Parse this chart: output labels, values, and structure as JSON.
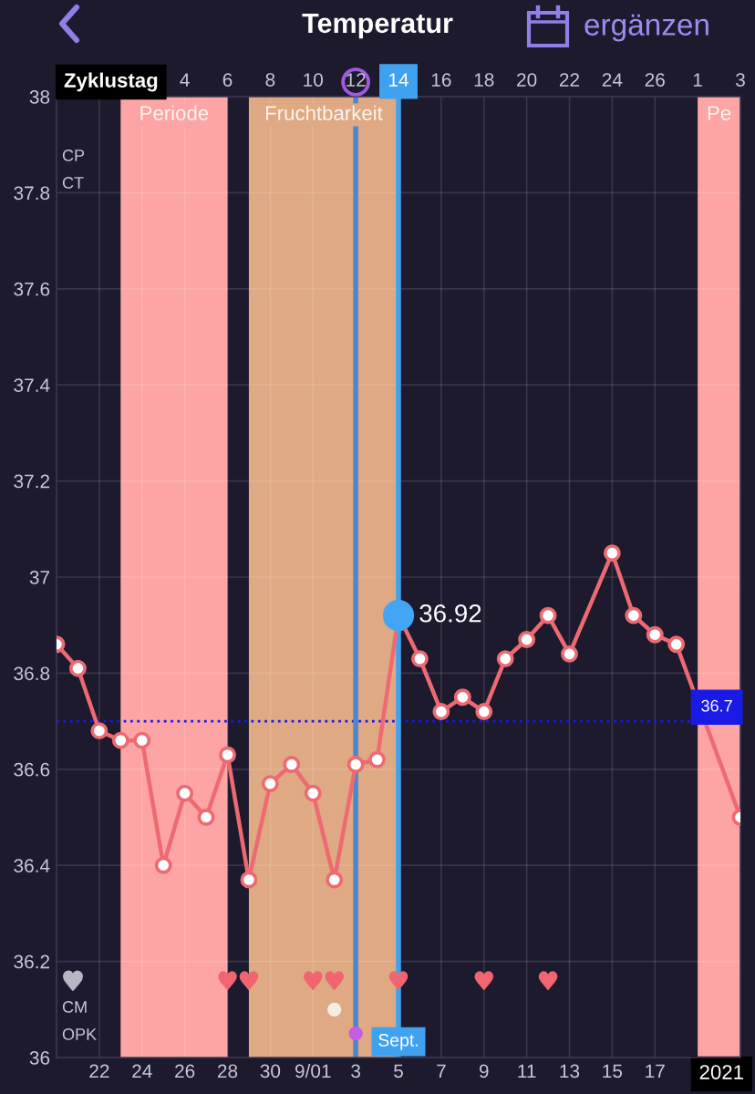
{
  "chart_data": {
    "type": "line",
    "title": "Temperatur",
    "xlabel": "2021",
    "x2label": "Zyklustag",
    "xlim": [
      "2021-08-20",
      "2021-09-21"
    ],
    "x2lim": [
      "2021-08-20",
      "2021-09-21"
    ],
    "ylim": [
      36,
      38
    ],
    "xticks": [
      {
        "value": "2021-08-22",
        "label": "22"
      },
      {
        "value": "2021-08-24",
        "label": "24"
      },
      {
        "value": "2021-08-26",
        "label": "26"
      },
      {
        "value": "2021-08-28",
        "label": "28"
      },
      {
        "value": "2021-08-30",
        "label": "30"
      },
      {
        "value": "2021-09-01",
        "label": "9/01"
      },
      {
        "value": "2021-09-03",
        "label": "3"
      },
      {
        "value": "2021-09-05",
        "label": "5"
      },
      {
        "value": "2021-09-07",
        "label": "7"
      },
      {
        "value": "2021-09-09",
        "label": "9"
      },
      {
        "value": "2021-09-11",
        "label": "11"
      },
      {
        "value": "2021-09-13",
        "label": "13"
      },
      {
        "value": "2021-09-15",
        "label": "15"
      },
      {
        "value": "2021-09-17",
        "label": "17"
      }
    ],
    "x2ticks": [
      {
        "value": "2021-08-26",
        "label": "4"
      },
      {
        "value": "2021-08-28",
        "label": "6"
      },
      {
        "value": "2021-08-30",
        "label": "8"
      },
      {
        "value": "2021-09-01",
        "label": "10"
      },
      {
        "value": "2021-09-03",
        "label": "12"
      },
      {
        "value": "2021-09-05",
        "label": "14"
      },
      {
        "value": "2021-09-07",
        "label": "16"
      },
      {
        "value": "2021-09-09",
        "label": "18"
      },
      {
        "value": "2021-09-11",
        "label": "20"
      },
      {
        "value": "2021-09-13",
        "label": "22"
      },
      {
        "value": "2021-09-15",
        "label": "24"
      },
      {
        "value": "2021-09-17",
        "label": "26"
      },
      {
        "value": "2021-09-19",
        "label": "1"
      },
      {
        "value": "2021-09-21",
        "label": "3"
      }
    ],
    "yticks": [
      36,
      36.2,
      36.4,
      36.6,
      36.8,
      37,
      37.2,
      37.4,
      37.6,
      37.8,
      38
    ],
    "grid": true,
    "bands": [
      {
        "axis": "x",
        "from": "2021-08-23",
        "to": "2021-08-28",
        "label": "Periode",
        "color": "#fda5a5"
      },
      {
        "axis": "x",
        "from": "2021-08-29",
        "to": "2021-09-05",
        "label": "Fruchtbarkeit",
        "color": "#dfa984"
      },
      {
        "axis": "x",
        "from": "2021-09-19",
        "to": "2021-09-21",
        "label": "Pe",
        "color": "#fda5a5"
      }
    ],
    "ref_lines": [
      {
        "axis": "y",
        "value": 36.7,
        "label": "36.7",
        "color": "#1a1ae6",
        "line_style": "dotted"
      },
      {
        "axis": "x",
        "value": "2021-09-03",
        "color": "#4b88d0"
      },
      {
        "axis": "x",
        "value": "2021-09-05",
        "label": "Sept.",
        "color": "#40a2ef"
      }
    ],
    "annotations": [
      "ergänzen",
      "CP",
      "CT",
      "CM",
      "OPK"
    ],
    "series": [
      {
        "color": "#ee6a72",
        "marker": "circle",
        "x": [
          "2021-08-20",
          "2021-08-21",
          "2021-08-22",
          "2021-08-23",
          "2021-08-24",
          "2021-08-25",
          "2021-08-26",
          "2021-08-27",
          "2021-08-28",
          "2021-08-29",
          "2021-08-30",
          "2021-08-31",
          "2021-09-01",
          "2021-09-02",
          "2021-09-03",
          "2021-09-04",
          "2021-09-05",
          "2021-09-06",
          "2021-09-07",
          "2021-09-08",
          "2021-09-09",
          "2021-09-10",
          "2021-09-11",
          "2021-09-12",
          "2021-09-13",
          "2021-09-15",
          "2021-09-16",
          "2021-09-17",
          "2021-09-18",
          "2021-09-21"
        ],
        "values": [
          36.86,
          36.81,
          36.68,
          36.66,
          36.66,
          36.4,
          36.55,
          36.5,
          36.63,
          36.37,
          36.57,
          36.61,
          36.55,
          36.37,
          36.61,
          36.62,
          36.92,
          36.83,
          36.72,
          36.75,
          36.72,
          36.83,
          36.87,
          36.92,
          36.84,
          37.05,
          36.92,
          36.88,
          36.86,
          36.5
        ],
        "colors": [
          "#ffffff",
          "#ffffff",
          "#ffffff",
          "#ffffff",
          "#ffffff",
          "#ffffff",
          "#ffffff",
          "#ffffff",
          "#ffffff",
          "#ffffff",
          "#ffffff",
          "#ffffff",
          "#ffffff",
          "#ffffff",
          "#ffffff",
          "#ffffff",
          "#42a5f5",
          "#ffffff",
          "#ffffff",
          "#ffffff",
          "#ffffff",
          "#ffffff",
          "#ffffff",
          "#ffffff",
          "#ffffff",
          "#ffffff",
          "#ffffff",
          "#ffffff",
          "#ffffff",
          "#ffffff"
        ],
        "value_labels": [
          null,
          null,
          null,
          null,
          null,
          null,
          null,
          null,
          null,
          null,
          null,
          null,
          null,
          null,
          null,
          null,
          "36.92",
          null,
          null,
          null,
          null,
          null,
          null,
          null,
          null,
          null,
          null,
          null,
          null,
          null
        ]
      },
      {
        "type": "scatter",
        "color": "#ef6670",
        "x": [
          "2021-08-28",
          "2021-08-29",
          "2021-09-01",
          "2021-09-02",
          "2021-09-05",
          "2021-09-09",
          "2021-09-12"
        ],
        "values": [
          36.16,
          36.16,
          36.16,
          36.16,
          36.16,
          36.16,
          36.16
        ]
      },
      {
        "type": "scatter",
        "color": "#f3eee4",
        "marker": "circle",
        "x": [
          "2021-09-02"
        ],
        "values": [
          36.1
        ]
      },
      {
        "type": "scatter",
        "color": "#c45ee0",
        "marker": "circle",
        "x": [
          "2021-09-03"
        ],
        "values": [
          36.05
        ]
      }
    ]
  }
}
